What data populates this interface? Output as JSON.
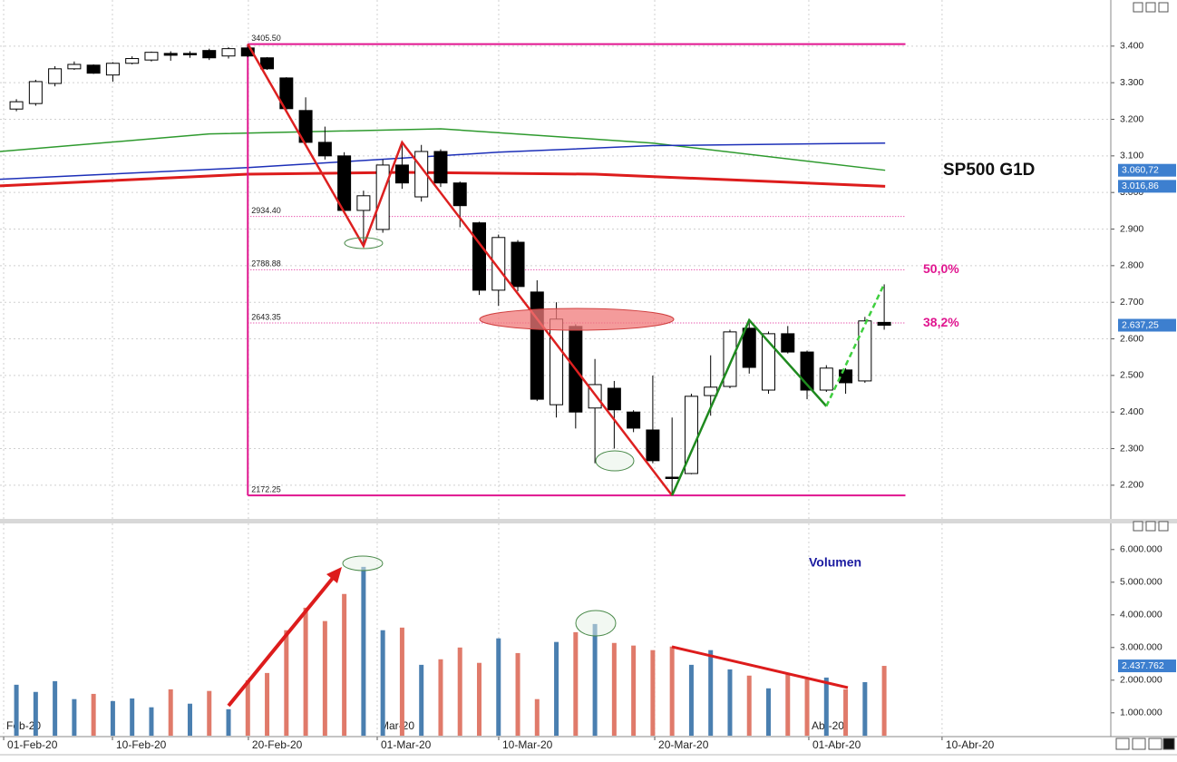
{
  "chart_data": [
    {
      "type": "candlestick",
      "title": "SP500 G1D",
      "xlim": [
        -0.85,
        56.75
      ],
      "ylim": [
        2108,
        3526
      ],
      "yticks": [
        {
          "value": 2200,
          "label": "2.200"
        },
        {
          "value": 2300,
          "label": "2.300"
        },
        {
          "value": 2400,
          "label": "2.400"
        },
        {
          "value": 2500,
          "label": "2.500"
        },
        {
          "value": 2600,
          "label": "2.600"
        },
        {
          "value": 2700,
          "label": "2.700"
        },
        {
          "value": 2800,
          "label": "2.800"
        },
        {
          "value": 2900,
          "label": "2.900"
        },
        {
          "value": 3000,
          "label": "3.000"
        },
        {
          "value": 3100,
          "label": "3.100"
        },
        {
          "value": 3200,
          "label": "3.200"
        },
        {
          "value": 3300,
          "label": "3.300"
        },
        {
          "value": 3400,
          "label": "3.400"
        }
      ],
      "grid": true,
      "up_color": "#ffffff",
      "down_color": "#000000",
      "open": [
        3228,
        3243,
        3298,
        3338,
        3348,
        3321,
        3353,
        3362,
        3380,
        3380,
        3388,
        3373,
        3395,
        3368,
        3313,
        3224,
        3137,
        3100,
        2951,
        2899,
        3075,
        2988,
        3112,
        3026,
        2917,
        2733,
        2864,
        2728,
        2420,
        2634,
        2411,
        2465,
        2400,
        2351,
        2222,
        2232,
        2445,
        2470,
        2629,
        2460,
        2614,
        2564,
        2460,
        2515,
        2485,
        2645
      ],
      "high": [
        3255,
        3308,
        3345,
        3358,
        3350,
        3356,
        3372,
        3385,
        3386,
        3386,
        3393,
        3397,
        3405.5,
        3370,
        3315,
        3260,
        3180,
        3110,
        3005,
        3090,
        3137,
        3130,
        3118,
        3030,
        2920,
        2885,
        2870,
        2760,
        2700,
        2640,
        2545,
        2485,
        2405,
        2500,
        2385,
        2450,
        2555,
        2625,
        2650,
        2620,
        2635,
        2568,
        2528,
        2520,
        2660,
        2749
      ],
      "low": [
        3222,
        3237,
        3290,
        3335,
        3324,
        3303,
        3350,
        3358,
        3360,
        3368,
        3362,
        3366,
        3370,
        3335,
        3225,
        3130,
        3090,
        2948,
        2855,
        2890,
        3010,
        2975,
        3015,
        2905,
        2720,
        2690,
        2730,
        2430,
        2385,
        2355,
        2260,
        2300,
        2345,
        2260,
        2172.25,
        2230,
        2390,
        2465,
        2505,
        2450,
        2560,
        2435,
        2455,
        2450,
        2480,
        2625
      ],
      "close": [
        3248,
        3303,
        3338,
        3350,
        3326,
        3353,
        3366,
        3383,
        3375,
        3377,
        3368,
        3393,
        3373,
        3338,
        3229,
        3137,
        3100,
        2951,
        2991,
        3075,
        3026,
        3112,
        3026,
        2964,
        2733,
        2877,
        2743,
        2435,
        2654,
        2400,
        2475,
        2406,
        2356,
        2267,
        2220,
        2443,
        2468,
        2619,
        2522,
        2614,
        2564,
        2460,
        2520,
        2480,
        2649,
        2637.25
      ],
      "last_label": "2.637,25",
      "tag_color": "#3d7fcf",
      "lines": [
        {
          "color": "#2e9a2e",
          "width": 1.5,
          "x": [
            -0.85,
            10,
            22,
            33,
            45.05
          ],
          "values": [
            3112,
            3160,
            3174,
            3135,
            3060.72
          ],
          "last_label": "3.060,72"
        },
        {
          "color": "#1c2fb8",
          "width": 1.5,
          "x": [
            -0.85,
            12,
            25,
            33,
            45.05
          ],
          "values": [
            3036,
            3068,
            3110,
            3128,
            3135
          ]
        },
        {
          "color": "#dd1c1c",
          "width": 3,
          "x": [
            -0.85,
            12,
            20,
            30,
            45.05
          ],
          "values": [
            3018,
            3050,
            3055,
            3050,
            3016.86
          ],
          "last_label": "3.016,86"
        }
      ],
      "levels_color": "#e0158f",
      "levels_x": [
        12,
        46.1
      ],
      "levels": [
        {
          "value": 3405.5,
          "label": "3405.50",
          "style": "solid"
        },
        {
          "value": 2934.4,
          "label": "2934.40",
          "style": "dotted"
        },
        {
          "value": 2788.88,
          "label": "2788.88",
          "style": "dotted",
          "note": "50,0%"
        },
        {
          "value": 2643.35,
          "label": "2643.35",
          "style": "dotted",
          "note": "38,2%"
        },
        {
          "value": 2172.25,
          "label": "2172.25",
          "style": "solid"
        }
      ],
      "trend_lines": [
        {
          "color": "#dd2020",
          "dashed": false,
          "x": [
            12,
            18,
            20,
            34
          ],
          "values": [
            3405.5,
            2854,
            3137,
            2172.25
          ]
        },
        {
          "color": "#1f8a1f",
          "dashed": false,
          "x": [
            34,
            38,
            42
          ],
          "values": [
            2172.25,
            2651,
            2416
          ]
        },
        {
          "color": "#3fcf3f",
          "dashed": true,
          "x": [
            42,
            45
          ],
          "values": [
            2416,
            2750
          ]
        }
      ]
    },
    {
      "type": "bar",
      "title": "Volumen",
      "xlim": [
        -0.85,
        56.75
      ],
      "ylim": [
        300000,
        6800000
      ],
      "yticks": [
        {
          "value": 1000000,
          "label": "1.000.000"
        },
        {
          "value": 2000000,
          "label": "2.000.000"
        },
        {
          "value": 3000000,
          "label": "3.000.000"
        },
        {
          "value": 4000000,
          "label": "4.000.000"
        },
        {
          "value": 5000000,
          "label": "5.000.000"
        },
        {
          "value": 6000000,
          "label": "6.000.000"
        }
      ],
      "xticks": [
        {
          "value": -0.66,
          "label": "01-Feb-20"
        },
        {
          "value": 4.98,
          "label": "10-Feb-20"
        },
        {
          "value": 12.03,
          "label": "20-Feb-20"
        },
        {
          "value": 18.71,
          "label": "01-Mar-20"
        },
        {
          "value": 25.01,
          "label": "10-Mar-20"
        },
        {
          "value": 33.1,
          "label": "20-Mar-20"
        },
        {
          "value": 41.09,
          "label": "01-Abr-20"
        },
        {
          "value": 48.0,
          "label": "10-Abr-20"
        }
      ],
      "month_labels": [
        {
          "value": -0.66,
          "label": "Feb-20"
        },
        {
          "value": 18.71,
          "label": "Mar-20"
        },
        {
          "value": 41.09,
          "label": "Abr-20"
        }
      ],
      "values": [
        1860000,
        1640000,
        1970000,
        1420000,
        1580000,
        1360000,
        1440000,
        1170000,
        1720000,
        1280000,
        1670000,
        1110000,
        2000000,
        2220000,
        3530000,
        4220000,
        3810000,
        4640000,
        5470000,
        3530000,
        3610000,
        2470000,
        2640000,
        3000000,
        2530000,
        3280000,
        2830000,
        1420000,
        3170000,
        3470000,
        3720000,
        3140000,
        3060000,
        2920000,
        3030000,
        2470000,
        2920000,
        2330000,
        2140000,
        1750000,
        2170000,
        2030000,
        2080000,
        1720000,
        1940000,
        2437762
      ],
      "colors": [
        "#4a7fb0",
        "#4a7fb0",
        "#4a7fb0",
        "#4a7fb0",
        "#e07a6a",
        "#4a7fb0",
        "#4a7fb0",
        "#4a7fb0",
        "#e07a6a",
        "#4a7fb0",
        "#e07a6a",
        "#4a7fb0",
        "#e07a6a",
        "#e07a6a",
        "#e07a6a",
        "#e07a6a",
        "#e07a6a",
        "#e07a6a",
        "#4a7fb0",
        "#4a7fb0",
        "#e07a6a",
        "#4a7fb0",
        "#e07a6a",
        "#e07a6a",
        "#e07a6a",
        "#4a7fb0",
        "#e07a6a",
        "#e07a6a",
        "#4a7fb0",
        "#e07a6a",
        "#4a7fb0",
        "#e07a6a",
        "#e07a6a",
        "#e07a6a",
        "#e07a6a",
        "#4a7fb0",
        "#4a7fb0",
        "#4a7fb0",
        "#e07a6a",
        "#4a7fb0",
        "#e07a6a",
        "#e07a6a",
        "#4a7fb0",
        "#e07a6a",
        "#4a7fb0",
        "#e07a6a"
      ],
      "last_label": "2.437.762",
      "tag_color": "#3d7fcf"
    }
  ]
}
